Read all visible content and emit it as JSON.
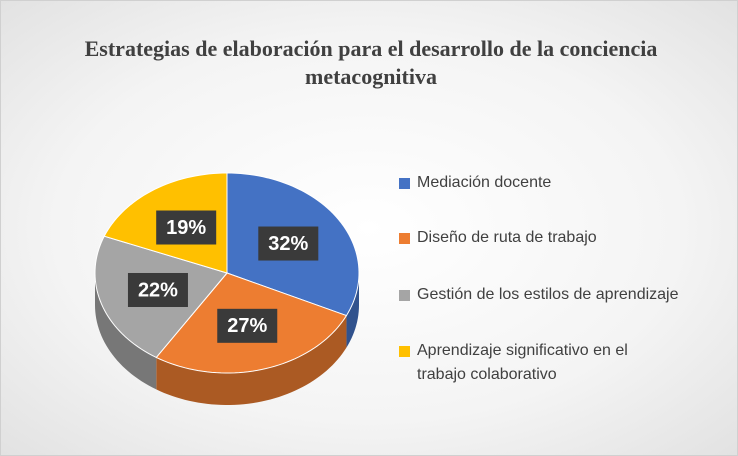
{
  "chart_data": {
    "type": "pie",
    "title": "Estrategias de elaboración para el desarrollo de la conciencia metacognitiva",
    "categories": [
      "Mediación docente",
      "Diseño de ruta de trabajo",
      "Gestión de los estilos de aprendizaje",
      "Aprendizaje significativo en el trabajo colaborativo"
    ],
    "values": [
      32,
      27,
      22,
      19
    ],
    "value_labels": [
      "32%",
      "27%",
      "22%",
      "19%"
    ],
    "colors": [
      "#4472c4",
      "#ed7d31",
      "#a5a5a5",
      "#ffc000"
    ],
    "legend": "right"
  }
}
